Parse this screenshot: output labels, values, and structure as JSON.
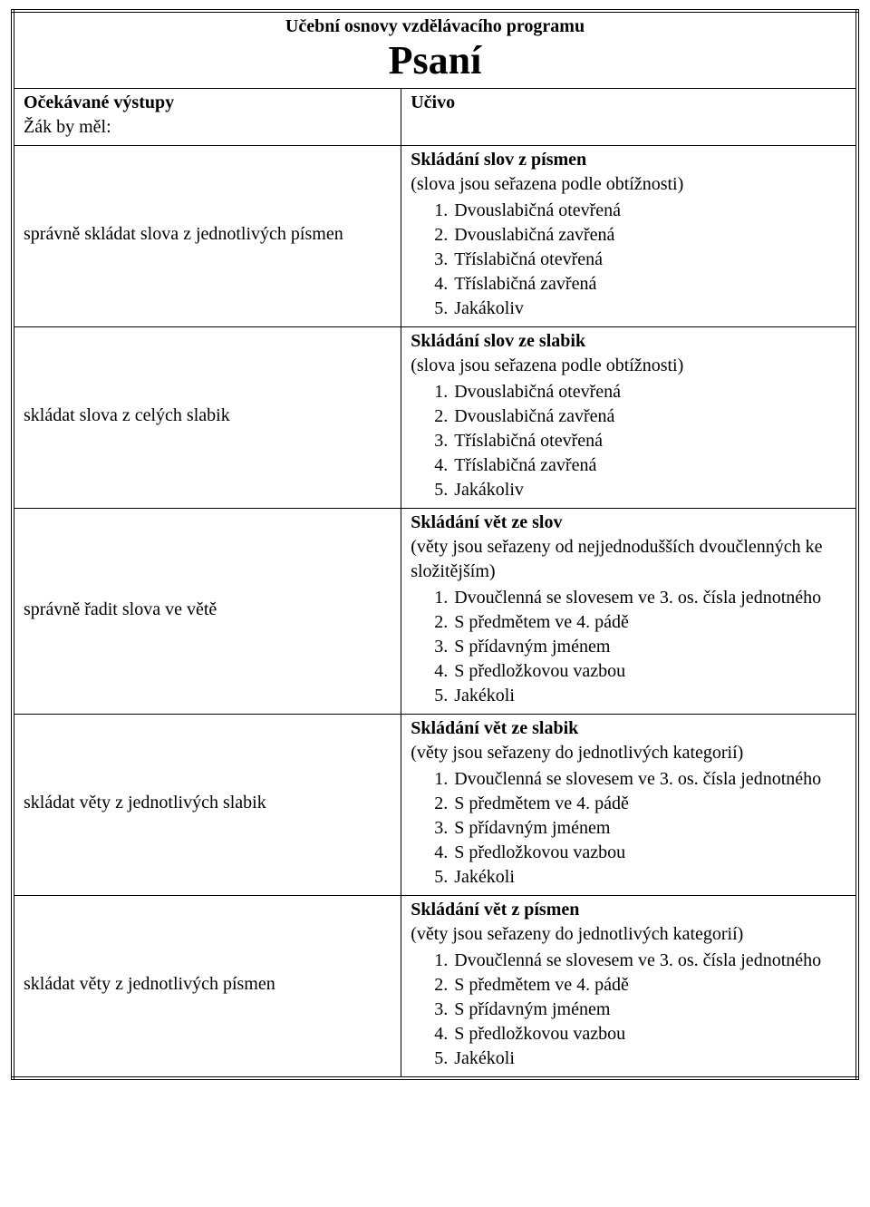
{
  "doc": {
    "title_small": "Učební osnovy vzdělávacího programu",
    "title_big": "Psaní",
    "left_header_bold": "Očekávané výstupy",
    "left_header_sub": "Žák by měl:",
    "right_header_bold": "Učivo"
  },
  "rows": [
    {
      "left": "správně skládat slova z jednotlivých písmen",
      "right_title": "Skládání slov z písmen",
      "right_sub": "(slova jsou seřazena podle obtížnosti)",
      "items": [
        "Dvouslabičná otevřená",
        "Dvouslabičná zavřená",
        "Tříslabičná otevřená",
        "Tříslabičná zavřená",
        "Jakákoliv"
      ]
    },
    {
      "left": "skládat slova z celých slabik",
      "right_title": "Skládání slov ze slabik",
      "right_sub": "(slova jsou seřazena podle obtížnosti)",
      "items": [
        "Dvouslabičná otevřená",
        "Dvouslabičná zavřená",
        "Tříslabičná otevřená",
        "Tříslabičná zavřená",
        "Jakákoliv"
      ]
    },
    {
      "left": "správně řadit slova ve větě",
      "right_title": "Skládání vět ze slov",
      "right_sub": "(věty jsou seřazeny od nejjednodušších dvoučlenných ke složitějším)",
      "items": [
        "Dvoučlenná se slovesem ve 3. os. čísla jednotného",
        "S předmětem ve 4. pádě",
        "S přídavným jménem",
        "S předložkovou vazbou",
        "Jakékoli"
      ]
    },
    {
      "left": "skládat věty z jednotlivých slabik",
      "right_title": "Skládání vět ze slabik",
      "right_sub": "(věty jsou seřazeny do jednotlivých kategorií)",
      "items": [
        "Dvoučlenná se slovesem ve 3. os. čísla jednotného",
        "S předmětem ve 4. pádě",
        "S přídavným jménem",
        "S předložkovou vazbou",
        "Jakékoli"
      ]
    },
    {
      "left": "skládat věty z jednotlivých písmen",
      "right_title": "Skládání vět z písmen",
      "right_sub": "(věty jsou seřazeny do jednotlivých kategorií)",
      "items": [
        "Dvoučlenná se slovesem ve 3. os. čísla jednotného",
        "S předmětem ve 4. pádě",
        "S přídavným jménem",
        "S předložkovou vazbou",
        "Jakékoli"
      ]
    }
  ]
}
